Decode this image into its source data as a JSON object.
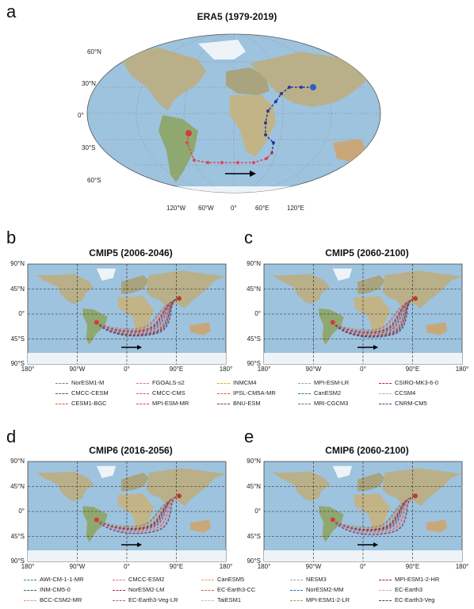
{
  "panels": {
    "a": {
      "letter": "a",
      "title": "ERA5 (1979-2019)",
      "lat_labels": [
        "60°N",
        "30°N",
        "0°",
        "30°S",
        "60°S"
      ],
      "lon_labels": [
        "120°W",
        "60°W",
        "0°",
        "60°E",
        "120°E"
      ]
    },
    "b": {
      "letter": "b",
      "title": "CMIP5 (2006-2046)"
    },
    "c": {
      "letter": "c",
      "title": "CMIP5 (2060-2100)"
    },
    "d": {
      "letter": "d",
      "title": "CMIP6 (2016-2056)"
    },
    "e": {
      "letter": "e",
      "title": "CMIP6 (2060-2100)"
    }
  },
  "rect_axes": {
    "lat_labels": [
      "90°N",
      "45°N",
      "0°",
      "45°S",
      "90°S"
    ],
    "lon_labels": [
      "180°",
      "90°W",
      "0°",
      "90°E",
      "180°"
    ]
  },
  "colors": {
    "ocean": "#9ec3de",
    "land": "#b9b08a",
    "green_land": "#8fa870",
    "ice": "#eef3f7",
    "track_red": "#d9475b",
    "track_blue": "#2a3aa0",
    "source_dot": "#2f5fc4",
    "sink_dot": "#d43b3b",
    "arrow": "#000000"
  },
  "legend_cmip5": [
    {
      "name": "NorESM1-M",
      "color": "#7f7f7f"
    },
    {
      "name": "FGOALS-s2",
      "color": "#e06fa8"
    },
    {
      "name": "INMCM4",
      "color": "#e8a33a"
    },
    {
      "name": "MPI-ESM-LR",
      "color": "#9aa7b4"
    },
    {
      "name": "CSIRO-MK3-6-0",
      "color": "#c2185b"
    },
    {
      "name": "CMCC-CESM",
      "color": "#2e6b4f"
    },
    {
      "name": "CMCC-CMS",
      "color": "#d84f9a"
    },
    {
      "name": "IPSL-CM5A-MR",
      "color": "#d9662a"
    },
    {
      "name": "CanESM2",
      "color": "#1f78b4"
    },
    {
      "name": "CCSM4",
      "color": "#c9a2c9"
    },
    {
      "name": "CESM1-BGC",
      "color": "#e0552e"
    },
    {
      "name": "MPI-ESM-MR",
      "color": "#d9475b"
    },
    {
      "name": "BNU-ESM",
      "color": "#8b2a4a"
    },
    {
      "name": "MRI-CGCM3",
      "color": "#3f8f3a"
    },
    {
      "name": "CNRM-CM5",
      "color": "#6a2c91"
    }
  ],
  "legend_cmip6": [
    {
      "name": "AWI-CM-1-1-MR",
      "color": "#3f8f3a"
    },
    {
      "name": "CMCC-ESM2",
      "color": "#e06fa8"
    },
    {
      "name": "CanESM5",
      "color": "#e8a33a"
    },
    {
      "name": "NESM3",
      "color": "#9aa7b4"
    },
    {
      "name": "MPI-ESM1-2-HR",
      "color": "#b8123a"
    },
    {
      "name": "INM-CM5-0",
      "color": "#2e6b4f"
    },
    {
      "name": "NorESM2-LM",
      "color": "#c2185b"
    },
    {
      "name": "EC-Earth3-CC",
      "color": "#d9662a"
    },
    {
      "name": "NorESM2-MM",
      "color": "#1f78b4"
    },
    {
      "name": "EC-Earth3",
      "color": "#c9a2c9"
    },
    {
      "name": "BCC-CSM2-MR",
      "color": "#e8956a"
    },
    {
      "name": "EC-Earth3-Veg-LR",
      "color": "#d84f9a"
    },
    {
      "name": "TaiESM1",
      "color": "#e8a9c0"
    },
    {
      "name": "MPI-ESM1-2-LR",
      "color": "#7fb36a"
    },
    {
      "name": "EC-Earth3-Veg",
      "color": "#6a2c91"
    }
  ]
}
